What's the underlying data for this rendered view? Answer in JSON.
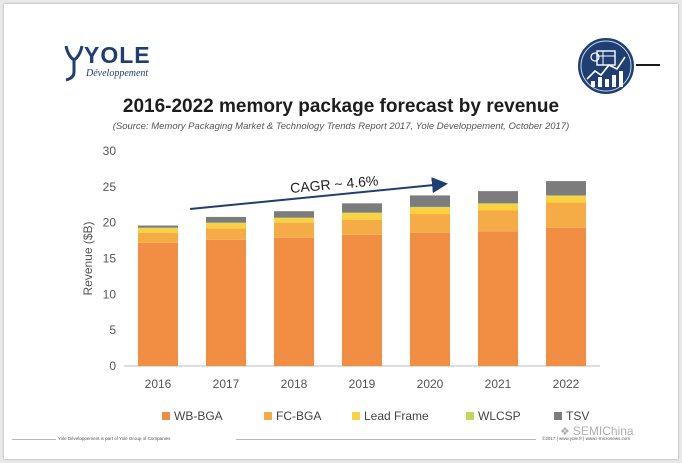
{
  "header": {
    "logo_name": "YOLE",
    "logo_sub": "Développement",
    "title": "2016-2022 memory package forecast by revenue",
    "source": "(Source: Memory Packaging Market & Technology Trends Report 2017, Yole Développement, October 2017)"
  },
  "annotation": {
    "text": "CAGR ~ 4.6%"
  },
  "footer": {
    "left": "Yole Développement is part of Yole Group of Companies",
    "right": "©2017 | www.yole.fr | www.i-micronews.com",
    "watermark": "SEMIChina"
  },
  "colors": {
    "WB-BGA": "#f28e43",
    "FC-BGA": "#f5ac46",
    "Lead Frame": "#fbd13f",
    "WLCSP": "#c3d659",
    "TSV": "#7c7c7c",
    "arrow": "#1f3f73"
  },
  "chart_data": {
    "type": "bar",
    "stacked": true,
    "title": "2016-2022 memory package forecast by revenue",
    "xlabel": "",
    "ylabel": "Revenue ($B)",
    "ylim": [
      0,
      30
    ],
    "yticks": [
      0,
      5,
      10,
      15,
      20,
      25,
      30
    ],
    "categories": [
      "2016",
      "2017",
      "2018",
      "2019",
      "2020",
      "2021",
      "2022"
    ],
    "series": [
      {
        "name": "WB-BGA",
        "values": [
          17.2,
          17.6,
          17.9,
          18.3,
          18.6,
          18.8,
          19.3
        ]
      },
      {
        "name": "FC-BGA",
        "values": [
          1.4,
          1.6,
          2.1,
          2.1,
          2.6,
          2.9,
          3.5
        ]
      },
      {
        "name": "Lead Frame",
        "values": [
          0.6,
          0.7,
          0.6,
          0.9,
          0.9,
          0.9,
          0.9
        ]
      },
      {
        "name": "WLCSP",
        "values": [
          0.1,
          0.1,
          0.1,
          0.1,
          0.1,
          0.1,
          0.1
        ]
      },
      {
        "name": "TSV",
        "values": [
          0.3,
          0.8,
          0.9,
          1.3,
          1.6,
          1.7,
          2.0
        ]
      }
    ],
    "legend": "bottom",
    "grid": false
  }
}
